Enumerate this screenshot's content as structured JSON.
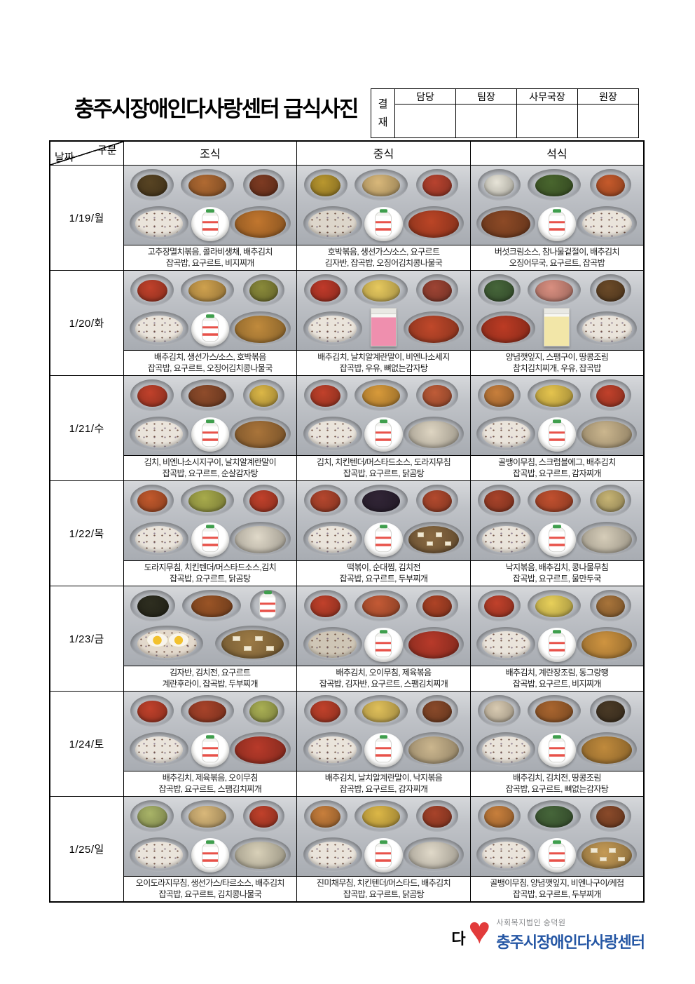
{
  "title": "충주시장애인다사랑센터 급식사진",
  "approval": {
    "label": "결재",
    "columns": [
      "담당",
      "팀장",
      "사무국장",
      "원장"
    ]
  },
  "table_header": {
    "corner_top": "구분",
    "corner_bottom": "날짜",
    "columns": [
      "조식",
      "중식",
      "석식"
    ]
  },
  "rows": [
    {
      "date": "1/19/월",
      "meals": [
        {
          "caption": [
            "고추장멸치볶음, 콜라비생채, 배추김치",
            "잡곡밥, 요구르트, 비지찌개"
          ],
          "photo": {
            "sides": [
              "#584423",
              "#b06a32",
              "#7e3b22"
            ],
            "soup": "#c1762e",
            "drink": "yogurt"
          }
        },
        {
          "caption": [
            "호박볶음, 생선가스/소스, 요구르트",
            "김자반, 잡곡밥, 오징어김치콩나물국"
          ],
          "photo": {
            "sides": [
              "#b9972f",
              "#d9b87a",
              "#b8432f"
            ],
            "rice": "#ddd6cb",
            "soup": "#bb4526",
            "drink": "yogurt"
          }
        },
        {
          "caption": [
            "버섯크림소스, 참나물겉절이, 배추김치",
            "오징어무국, 요구르트, 잡곡밥"
          ],
          "photo": {
            "sides": [
              "#e7e4d8",
              "#49662e",
              "#c65a2b"
            ],
            "soup": "#8d4a26",
            "drink": "yogurt",
            "flip": true
          }
        }
      ]
    },
    {
      "date": "1/20/화",
      "meals": [
        {
          "caption": [
            "배추김치, 생선가스/소스, 호박볶음",
            "잡곡밥, 요구르트, 오징어김치콩나물국"
          ],
          "photo": {
            "sides": [
              "#c1412b",
              "#cfa14e",
              "#8a8a3a"
            ],
            "soup": "#c08a3c",
            "drink": "yogurt"
          }
        },
        {
          "caption": [
            "배추김치, 날치알계란말이, 비엔나소세지",
            "잡곡밥, 우유, 뼈없는감자탕"
          ],
          "photo": {
            "sides": [
              "#c03a2a",
              "#e7c95e",
              "#9e4434"
            ],
            "soup": "#c0482a",
            "drink": "milk_pink"
          }
        },
        {
          "caption": [
            "양념깻잎지, 스팸구이, 땅콩조림",
            "참치김치찌개, 우유, 잡곡밥"
          ],
          "photo": {
            "sides": [
              "#46663a",
              "#d98f80",
              "#6b4a28"
            ],
            "soup": "#bc3b24",
            "drink": "milk_yellow",
            "flip": true
          }
        }
      ]
    },
    {
      "date": "1/21/수",
      "meals": [
        {
          "caption": [
            "김치, 비엔나소시지구이, 날치알계란말이",
            "잡곡밥, 요구르트, 순살감자탕"
          ],
          "photo": {
            "sides": [
              "#c1412b",
              "#8f4c2b",
              "#dcb747"
            ],
            "soup": "#a9743a",
            "drink": "yogurt"
          }
        },
        {
          "caption": [
            "김치, 치킨텐더/머스타드소스, 도라지무침",
            "잡곡밥, 요구르트, 닭곰탕"
          ],
          "photo": {
            "sides": [
              "#c1412b",
              "#d89a3a",
              "#bf5c38"
            ],
            "soup": "#ded5c2",
            "drink": "yogurt"
          }
        },
        {
          "caption": [
            "골뱅이무침, 스크럼블에그, 배추김치",
            "잡곡밥, 요구르트, 감자찌개"
          ],
          "photo": {
            "sides": [
              "#c87f3c",
              "#e5c44e",
              "#c1412b"
            ],
            "soup": "#cbb68e",
            "drink": "yogurt"
          }
        }
      ]
    },
    {
      "date": "1/22/목",
      "meals": [
        {
          "caption": [
            "도라지무침, 치킨텐더/머스타드소스,김치",
            "잡곡밥, 요구르트, 닭곰탕"
          ],
          "photo": {
            "sides": [
              "#c2592c",
              "#a8ab4c",
              "#c1412b"
            ],
            "soup": "#e0d9c9",
            "drink": "yogurt"
          }
        },
        {
          "caption": [
            "떡볶이, 순대찜, 김치전",
            "잡곡밥, 요구르트, 두부찌개"
          ],
          "photo": {
            "sides": [
              "#b5472e",
              "#312536",
              "#b34a2e"
            ],
            "soup": "#8a6a42",
            "drink": "yogurt",
            "tofu": true
          }
        },
        {
          "caption": [
            "낙지볶음, 배추김치, 콩나물무침",
            "잡곡밥, 요구르트, 물만두국"
          ],
          "photo": {
            "sides": [
              "#a8432a",
              "#c1502f",
              "#c7b474"
            ],
            "soup": "#d6cdb9",
            "drink": "yogurt"
          }
        }
      ]
    },
    {
      "date": "1/23/금",
      "meals": [
        {
          "caption": [
            "김자반, 김치전, 요구르트",
            "계란후라이, 잡곡밥, 두부찌개"
          ],
          "photo": {
            "layout": "5",
            "sides": [
              "#2e2e20",
              "#9a5426",
              "yogurt"
            ],
            "rice": "#e3d9cc",
            "topping": "egg",
            "soup": "#9c7a45",
            "tofu": true
          }
        },
        {
          "caption": [
            "배추김치, 오이무침, 제육볶음",
            "잡곡밥, 김자반, 요구르트, 스팸김치찌개"
          ],
          "photo": {
            "sides": [
              "#c1412b",
              "#c45a35",
              "#ae4326"
            ],
            "rice": "#cfc6b6",
            "soup": "#b83a2a",
            "drink": "yogurt"
          }
        },
        {
          "caption": [
            "배추김치, 계란장조림, 동그랑땡",
            "잡곡밥, 요구르트, 비지찌개"
          ],
          "photo": {
            "sides": [
              "#c1412b",
              "#e8d05a",
              "#a8743a"
            ],
            "soup": "#cf9440",
            "drink": "yogurt"
          }
        }
      ]
    },
    {
      "date": "1/24/토",
      "meals": [
        {
          "caption": [
            "배추김치, 제육볶음, 오이무침",
            "잡곡밥, 요구르트, 스팸김치찌개"
          ],
          "photo": {
            "sides": [
              "#c1412b",
              "#a8432a",
              "#aab054"
            ],
            "soup": "#b83a2a",
            "drink": "yogurt"
          }
        },
        {
          "caption": [
            "배추김치, 날치알계란말이, 낙지볶음",
            "잡곡밥, 요구르트, 감자찌개"
          ],
          "photo": {
            "sides": [
              "#c1412b",
              "#e0c05a",
              "#8a4a2a"
            ],
            "soup": "#cbb68e",
            "drink": "yogurt"
          }
        },
        {
          "caption": [
            "배추김치, 김치전, 땅콩조림",
            "잡곡밥, 요구르트, 뼈없는감자탕"
          ],
          "photo": {
            "sides": [
              "#d9cbb2",
              "#a9652f",
              "#4a3a26"
            ],
            "soup": "#c08a3c",
            "drink": "yogurt"
          }
        }
      ]
    },
    {
      "date": "1/25/일",
      "meals": [
        {
          "caption": [
            "오이도라지무침, 생선가스/타르소스, 배추김치",
            "잡곡밥, 요구르트, 김치콩나물국"
          ],
          "photo": {
            "sides": [
              "#a9b468",
              "#d9b87a",
              "#c1412b"
            ],
            "soup": "#d8d0b8",
            "drink": "yogurt"
          }
        },
        {
          "caption": [
            "진미채무침, 치킨텐더/머스타드, 배추김치",
            "잡곡밥, 요구르트, 닭곰탕"
          ],
          "photo": {
            "sides": [
              "#c87f3c",
              "#dcb747",
              "#a8432a"
            ],
            "soup": "#e0d9c9",
            "drink": "yogurt"
          }
        },
        {
          "caption": [
            "골뱅이무침, 양념깻잎지, 비엔나구이/케첩",
            "잡곡밥, 요구르트, 두부찌개"
          ],
          "photo": {
            "sides": [
              "#c87f3c",
              "#46663a",
              "#8a4a2a"
            ],
            "soup": "#c49a55",
            "drink": "yogurt",
            "tofu": true
          }
        }
      ]
    }
  ],
  "footer": {
    "org_small": "사회복지법인 숭덕원",
    "org_name": "충주시장애인다사랑센터",
    "logo_char": "다",
    "brand_blue": "#2456a4",
    "brand_red": "#e23b3b"
  }
}
